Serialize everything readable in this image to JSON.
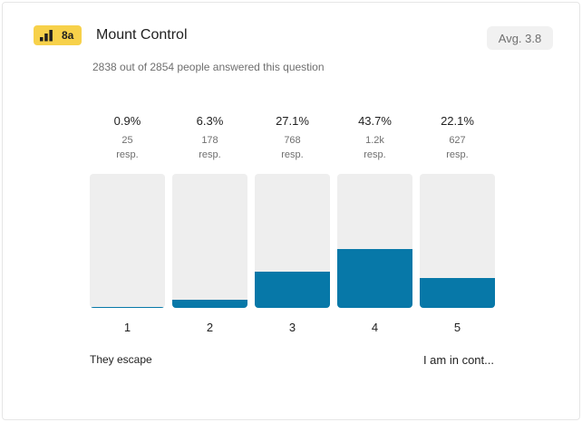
{
  "question": {
    "badge": "8a",
    "badge_icon": "signal-bars-icon",
    "title": "Mount Control",
    "subtitle": "2838 out of 2854 people answered this question",
    "average": "Avg. 3.8"
  },
  "colors": {
    "badge": "#f7d14a",
    "bar_fill": "#0778a8",
    "bar_track": "#eeeeee"
  },
  "chart_data": {
    "type": "bar",
    "categories": [
      "1",
      "2",
      "3",
      "4",
      "5"
    ],
    "percent_labels": [
      "0.9%",
      "6.3%",
      "27.1%",
      "43.7%",
      "22.1%"
    ],
    "percent_values": [
      0.9,
      6.3,
      27.1,
      43.7,
      22.1
    ],
    "count_labels": [
      "25",
      "178",
      "768",
      "1.2k",
      "627"
    ],
    "unit_label": "resp.",
    "low_label": "They escape",
    "high_label": "I am in cont...",
    "ylim": [
      0,
      100
    ]
  }
}
